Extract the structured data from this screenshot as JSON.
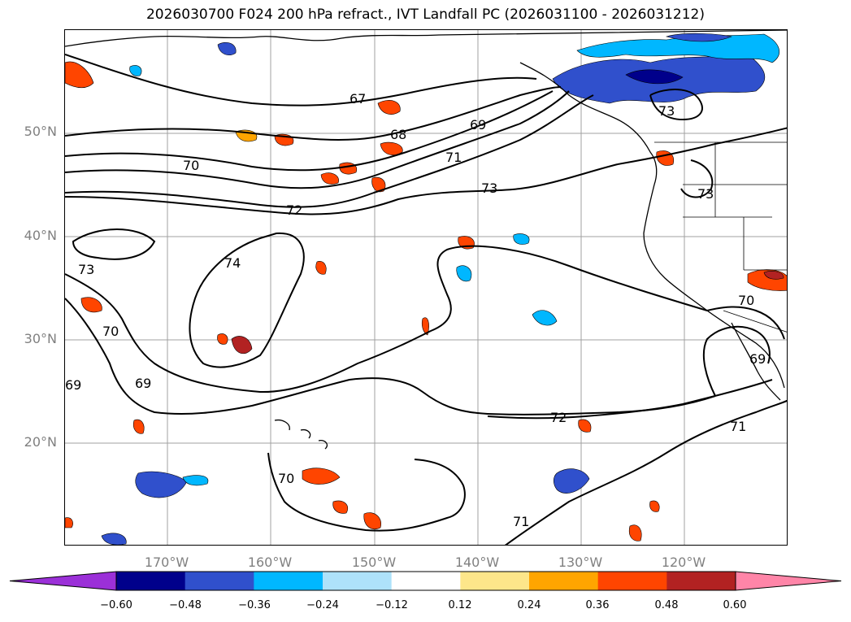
{
  "title": "2026030700 F024 200 hPa refract., IVT Landfall PC (2026031100 - 2026031212)",
  "lat_labels": [
    "50°N",
    "40°N",
    "30°N",
    "20°N"
  ],
  "lon_labels": [
    "170°W",
    "160°W",
    "150°W",
    "140°W",
    "130°W",
    "120°W"
  ],
  "contour_labels": [
    "67",
    "68",
    "69",
    "70",
    "71",
    "72",
    "73",
    "73",
    "73",
    "74",
    "70",
    "69",
    "69",
    "70",
    "71",
    "72",
    "71",
    "70",
    "69",
    "73"
  ],
  "colorbar": {
    "ticks": [
      "−0.60",
      "−0.48",
      "−0.36",
      "−0.24",
      "−0.12",
      "0.12",
      "0.24",
      "0.36",
      "0.48",
      "0.60"
    ],
    "colors": [
      "#9b30d8",
      "#00008b",
      "#3050cc",
      "#00b7ff",
      "#aee2fa",
      "#ffffff",
      "#fde68a",
      "#ffa500",
      "#ff4500",
      "#b22222",
      "#ff85a8"
    ]
  },
  "colors": {
    "contour": "#000000",
    "grid": "#a0a0a0",
    "label_gray": "#808080"
  }
}
